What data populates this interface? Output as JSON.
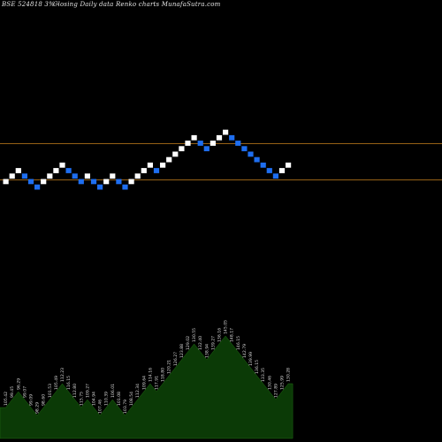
{
  "header": {
    "title": "BSE 524818  3%~",
    "subtitle": "Closing Daily data  Renko  charts MunafaSutra.com"
  },
  "chart_data": {
    "type": "renko",
    "title": "BSE 524818  3%~",
    "subtitle": "Closing Daily data  Renko  charts MunafaSutra.com",
    "brick_size_pct": 3,
    "up_color": "#ffffff",
    "down_color": "#1e6ef0",
    "background": "#000000",
    "reference_line_color": "#c8821e",
    "reference_lines": [
      "upper",
      "lower"
    ],
    "bricks": [
      "up",
      "up",
      "up",
      "down",
      "down",
      "down",
      "up",
      "up",
      "up",
      "up",
      "down",
      "down",
      "down",
      "up",
      "down",
      "down",
      "up",
      "up",
      "down",
      "down",
      "up",
      "up",
      "up",
      "up",
      "down",
      "up",
      "up",
      "up",
      "up",
      "up",
      "up",
      "down",
      "down",
      "up",
      "up",
      "up",
      "down",
      "down",
      "down",
      "down",
      "down",
      "down",
      "down",
      "down",
      "up",
      "up"
    ],
    "volume_labels": [
      "105.42",
      "99.45",
      "96.29",
      "99.07",
      "99.09",
      "98.29",
      "98.60",
      "101.53",
      "105.49",
      "112.23",
      "116.15",
      "112.80",
      "115.75",
      "109.27",
      "104.94",
      "107.46",
      "110.39",
      "106.01",
      "101.08",
      "103.79",
      "108.54",
      "112.34",
      "109.64",
      "114.16",
      "117.91",
      "118.80",
      "120.21",
      "126.27",
      "123.88",
      "129.02",
      "130.55",
      "132.40",
      "138.94",
      "139.27",
      "136.16",
      "145.05",
      "148.17",
      "146.15",
      "142.79",
      "139.99",
      "136.15",
      "133.35",
      "130.46",
      "127.89",
      "125.99",
      "130.28"
    ],
    "volume_area_color": "#0b3a06"
  }
}
